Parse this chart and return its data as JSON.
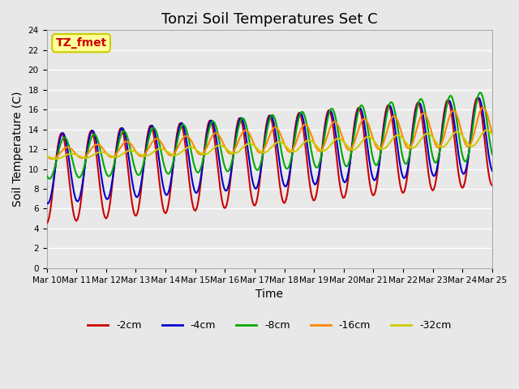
{
  "title": "Tonzi Soil Temperatures Set C",
  "xlabel": "Time",
  "ylabel": "Soil Temperature (C)",
  "annotation": "TZ_fmet",
  "annotation_color": "#cc0000",
  "annotation_bg": "#ffff99",
  "annotation_border": "#cccc00",
  "ylim": [
    0,
    24
  ],
  "yticks": [
    0,
    2,
    4,
    6,
    8,
    10,
    12,
    14,
    16,
    18,
    20,
    22,
    24
  ],
  "bg_color": "#e8e8e8",
  "grid_color": "#ffffff",
  "series": {
    "-2cm": {
      "color": "#cc0000",
      "lw": 1.5
    },
    "-4cm": {
      "color": "#0000cc",
      "lw": 1.5
    },
    "-8cm": {
      "color": "#00aa00",
      "lw": 1.5
    },
    "-16cm": {
      "color": "#ff8800",
      "lw": 1.5
    },
    "-32cm": {
      "color": "#cccc00",
      "lw": 1.5
    }
  },
  "x_labels": [
    "Mar 10",
    "Mar 11",
    "Mar 12",
    "Mar 13",
    "Mar 14",
    "Mar 15",
    "Mar 16",
    "Mar 17",
    "Mar 18",
    "Mar 19",
    "Mar 20",
    "Mar 21",
    "Mar 22",
    "Mar 23",
    "Mar 24",
    "Mar 25"
  ],
  "n_days": 15
}
